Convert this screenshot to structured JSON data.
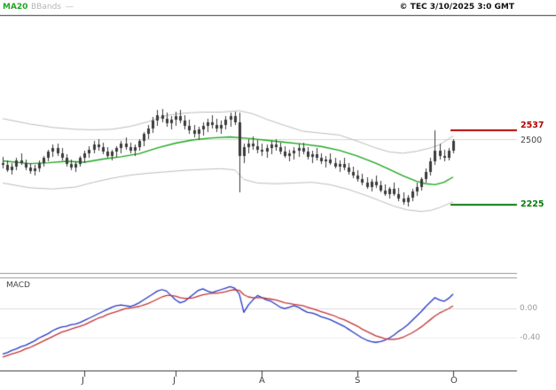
{
  "header": {
    "legend_ma20": "MA20",
    "legend_bbands": "BBands",
    "legend_dash": "—",
    "copyright": "© TEC 3/10/2025 3:0 GMT"
  },
  "price_panel": {
    "resistance": {
      "label": "2537",
      "value": 2537,
      "color": "#b30000"
    },
    "gridline": {
      "label": "2500",
      "value": 2500,
      "color": "#444444"
    },
    "support": {
      "label": "2225",
      "value": 2225,
      "color": "#0a7a0a"
    }
  },
  "macd_panel": {
    "label": "MACD",
    "axis": [
      {
        "label": "0.00",
        "value": 0
      },
      {
        "label": "-0.40",
        "value": -0.4
      }
    ]
  },
  "x_axis": {
    "labels": [
      {
        "label": "J",
        "index": 18
      },
      {
        "label": "J",
        "index": 38
      },
      {
        "label": "A",
        "index": 57
      },
      {
        "label": "S",
        "index": 78
      },
      {
        "label": "O",
        "index": 99
      }
    ]
  },
  "chart_data": {
    "type": "candlestick",
    "title": "",
    "xlabel": "",
    "ylabel": "",
    "x_tick_labels": [
      "J",
      "J",
      "A",
      "S",
      "O"
    ],
    "price_ylim": [
      1938,
      3015
    ],
    "grid_price": 2500,
    "candle_color": "#3b3b3b",
    "levels": {
      "resistance": 2537,
      "support": 2225
    },
    "candles_ohlc": [
      [
        2400,
        2425,
        2375,
        2390
      ],
      [
        2390,
        2410,
        2360,
        2370
      ],
      [
        2370,
        2400,
        2350,
        2385
      ],
      [
        2385,
        2420,
        2370,
        2410
      ],
      [
        2410,
        2440,
        2390,
        2400
      ],
      [
        2400,
        2415,
        2370,
        2380
      ],
      [
        2380,
        2400,
        2355,
        2365
      ],
      [
        2365,
        2390,
        2345,
        2375
      ],
      [
        2375,
        2410,
        2360,
        2400
      ],
      [
        2400,
        2430,
        2385,
        2420
      ],
      [
        2420,
        2455,
        2405,
        2445
      ],
      [
        2445,
        2475,
        2425,
        2460
      ],
      [
        2460,
        2480,
        2430,
        2440
      ],
      [
        2440,
        2460,
        2410,
        2420
      ],
      [
        2420,
        2435,
        2385,
        2395
      ],
      [
        2395,
        2415,
        2370,
        2380
      ],
      [
        2380,
        2405,
        2360,
        2395
      ],
      [
        2395,
        2430,
        2385,
        2420
      ],
      [
        2420,
        2450,
        2400,
        2440
      ],
      [
        2440,
        2470,
        2420,
        2455
      ],
      [
        2455,
        2490,
        2440,
        2475
      ],
      [
        2475,
        2500,
        2450,
        2465
      ],
      [
        2465,
        2485,
        2435,
        2445
      ],
      [
        2445,
        2465,
        2420,
        2430
      ],
      [
        2430,
        2455,
        2410,
        2445
      ],
      [
        2445,
        2470,
        2425,
        2460
      ],
      [
        2460,
        2490,
        2440,
        2480
      ],
      [
        2480,
        2505,
        2455,
        2465
      ],
      [
        2465,
        2485,
        2440,
        2450
      ],
      [
        2450,
        2475,
        2430,
        2465
      ],
      [
        2465,
        2500,
        2450,
        2490
      ],
      [
        2490,
        2530,
        2470,
        2520
      ],
      [
        2520,
        2560,
        2500,
        2545
      ],
      [
        2545,
        2590,
        2525,
        2575
      ],
      [
        2575,
        2620,
        2555,
        2600
      ],
      [
        2600,
        2625,
        2570,
        2585
      ],
      [
        2585,
        2610,
        2550,
        2565
      ],
      [
        2565,
        2595,
        2540,
        2580
      ],
      [
        2580,
        2615,
        2555,
        2595
      ],
      [
        2595,
        2620,
        2565,
        2575
      ],
      [
        2575,
        2600,
        2540,
        2555
      ],
      [
        2555,
        2580,
        2520,
        2535
      ],
      [
        2535,
        2560,
        2505,
        2520
      ],
      [
        2520,
        2550,
        2495,
        2540
      ],
      [
        2540,
        2570,
        2515,
        2555
      ],
      [
        2555,
        2585,
        2530,
        2570
      ],
      [
        2570,
        2600,
        2545,
        2560
      ],
      [
        2560,
        2585,
        2530,
        2545
      ],
      [
        2545,
        2575,
        2520,
        2560
      ],
      [
        2560,
        2595,
        2540,
        2580
      ],
      [
        2580,
        2610,
        2550,
        2595
      ],
      [
        2595,
        2615,
        2560,
        2570
      ],
      [
        2570,
        2612,
        2277,
        2430
      ],
      [
        2430,
        2480,
        2400,
        2465
      ],
      [
        2465,
        2500,
        2440,
        2480
      ],
      [
        2480,
        2510,
        2455,
        2470
      ],
      [
        2470,
        2495,
        2440,
        2455
      ],
      [
        2455,
        2480,
        2430,
        2445
      ],
      [
        2445,
        2475,
        2420,
        2460
      ],
      [
        2460,
        2490,
        2435,
        2475
      ],
      [
        2475,
        2500,
        2450,
        2465
      ],
      [
        2465,
        2485,
        2435,
        2445
      ],
      [
        2445,
        2470,
        2420,
        2430
      ],
      [
        2430,
        2455,
        2405,
        2440
      ],
      [
        2440,
        2465,
        2415,
        2450
      ],
      [
        2450,
        2480,
        2425,
        2460
      ],
      [
        2460,
        2485,
        2435,
        2445
      ],
      [
        2445,
        2465,
        2415,
        2425
      ],
      [
        2425,
        2450,
        2400,
        2435
      ],
      [
        2435,
        2460,
        2410,
        2420
      ],
      [
        2420,
        2440,
        2395,
        2405
      ],
      [
        2405,
        2430,
        2380,
        2415
      ],
      [
        2415,
        2440,
        2390,
        2400
      ],
      [
        2400,
        2420,
        2375,
        2385
      ],
      [
        2385,
        2410,
        2360,
        2395
      ],
      [
        2395,
        2420,
        2370,
        2380
      ],
      [
        2380,
        2400,
        2350,
        2360
      ],
      [
        2360,
        2385,
        2335,
        2345
      ],
      [
        2345,
        2370,
        2320,
        2330
      ],
      [
        2330,
        2355,
        2305,
        2315
      ],
      [
        2315,
        2340,
        2290,
        2300
      ],
      [
        2300,
        2330,
        2280,
        2320
      ],
      [
        2320,
        2345,
        2295,
        2305
      ],
      [
        2305,
        2325,
        2275,
        2285
      ],
      [
        2285,
        2310,
        2260,
        2270
      ],
      [
        2270,
        2300,
        2250,
        2290
      ],
      [
        2290,
        2315,
        2260,
        2270
      ],
      [
        2270,
        2295,
        2240,
        2250
      ],
      [
        2250,
        2275,
        2225,
        2235
      ],
      [
        2235,
        2265,
        2218,
        2255
      ],
      [
        2255,
        2290,
        2240,
        2280
      ],
      [
        2280,
        2315,
        2260,
        2300
      ],
      [
        2300,
        2340,
        2285,
        2330
      ],
      [
        2330,
        2375,
        2315,
        2360
      ],
      [
        2360,
        2420,
        2345,
        2405
      ],
      [
        2405,
        2537,
        2390,
        2450
      ],
      [
        2450,
        2480,
        2415,
        2430
      ],
      [
        2430,
        2455,
        2405,
        2420
      ],
      [
        2420,
        2460,
        2410,
        2450
      ],
      [
        2450,
        2500,
        2440,
        2490
      ]
    ],
    "overlays": {
      "ma20": {
        "name": "MA20",
        "color": "#1fa51f",
        "points": [
          [
            0,
            2408
          ],
          [
            6,
            2396
          ],
          [
            10,
            2400
          ],
          [
            14,
            2406
          ],
          [
            18,
            2402
          ],
          [
            22,
            2415
          ],
          [
            26,
            2425
          ],
          [
            30,
            2438
          ],
          [
            34,
            2462
          ],
          [
            38,
            2482
          ],
          [
            42,
            2496
          ],
          [
            46,
            2504
          ],
          [
            50,
            2508
          ],
          [
            54,
            2502
          ],
          [
            58,
            2494
          ],
          [
            62,
            2486
          ],
          [
            66,
            2478
          ],
          [
            70,
            2468
          ],
          [
            74,
            2452
          ],
          [
            78,
            2428
          ],
          [
            82,
            2398
          ],
          [
            85,
            2372
          ],
          [
            88,
            2345
          ],
          [
            91,
            2322
          ],
          [
            93,
            2312
          ],
          [
            95,
            2308
          ],
          [
            97,
            2318
          ],
          [
            99,
            2340
          ]
        ]
      },
      "bb_upper": {
        "name": "Bollinger upper",
        "color": "#bcbcbc",
        "points": [
          [
            0,
            2585
          ],
          [
            6,
            2562
          ],
          [
            11,
            2548
          ],
          [
            16,
            2540
          ],
          [
            20,
            2538
          ],
          [
            24,
            2540
          ],
          [
            28,
            2552
          ],
          [
            32,
            2572
          ],
          [
            36,
            2598
          ],
          [
            40,
            2608
          ],
          [
            44,
            2612
          ],
          [
            48,
            2612
          ],
          [
            52,
            2618
          ],
          [
            55,
            2605
          ],
          [
            58,
            2582
          ],
          [
            62,
            2556
          ],
          [
            66,
            2532
          ],
          [
            70,
            2524
          ],
          [
            74,
            2516
          ],
          [
            78,
            2490
          ],
          [
            82,
            2462
          ],
          [
            85,
            2445
          ],
          [
            88,
            2440
          ],
          [
            91,
            2448
          ],
          [
            94,
            2462
          ],
          [
            96,
            2475
          ],
          [
            98,
            2500
          ],
          [
            99,
            2512
          ]
        ]
      },
      "bb_lower": {
        "name": "Bollinger lower",
        "color": "#bcbcbc",
        "points": [
          [
            0,
            2315
          ],
          [
            6,
            2295
          ],
          [
            11,
            2290
          ],
          [
            16,
            2298
          ],
          [
            20,
            2318
          ],
          [
            24,
            2335
          ],
          [
            28,
            2348
          ],
          [
            32,
            2356
          ],
          [
            36,
            2362
          ],
          [
            40,
            2368
          ],
          [
            44,
            2372
          ],
          [
            48,
            2375
          ],
          [
            51,
            2370
          ],
          [
            53,
            2330
          ],
          [
            56,
            2315
          ],
          [
            60,
            2312
          ],
          [
            64,
            2315
          ],
          [
            68,
            2318
          ],
          [
            72,
            2308
          ],
          [
            76,
            2288
          ],
          [
            80,
            2262
          ],
          [
            83,
            2240
          ],
          [
            86,
            2218
          ],
          [
            89,
            2202
          ],
          [
            92,
            2196
          ],
          [
            94,
            2200
          ],
          [
            96,
            2212
          ],
          [
            98,
            2228
          ],
          [
            99,
            2236
          ]
        ]
      }
    },
    "macd": {
      "ylim": [
        -0.82,
        0.39
      ],
      "gridlines": [
        0,
        -0.4
      ],
      "series": [
        {
          "name": "macd",
          "color": "#2638c4",
          "values": [
            -0.62,
            -0.6,
            -0.57,
            -0.55,
            -0.52,
            -0.5,
            -0.47,
            -0.44,
            -0.4,
            -0.37,
            -0.34,
            -0.3,
            -0.27,
            -0.25,
            -0.24,
            -0.22,
            -0.21,
            -0.19,
            -0.16,
            -0.13,
            -0.1,
            -0.07,
            -0.04,
            -0.01,
            0.02,
            0.04,
            0.05,
            0.04,
            0.03,
            0.05,
            0.08,
            0.12,
            0.16,
            0.2,
            0.24,
            0.26,
            0.24,
            0.18,
            0.12,
            0.08,
            0.1,
            0.15,
            0.2,
            0.25,
            0.27,
            0.24,
            0.22,
            0.24,
            0.26,
            0.28,
            0.3,
            0.28,
            0.2,
            -0.05,
            0.05,
            0.12,
            0.18,
            0.15,
            0.12,
            0.1,
            0.06,
            0.02,
            0.0,
            0.02,
            0.04,
            0.02,
            -0.02,
            -0.05,
            -0.06,
            -0.08,
            -0.11,
            -0.13,
            -0.15,
            -0.18,
            -0.21,
            -0.24,
            -0.28,
            -0.32,
            -0.36,
            -0.4,
            -0.43,
            -0.45,
            -0.46,
            -0.45,
            -0.43,
            -0.4,
            -0.36,
            -0.31,
            -0.27,
            -0.22,
            -0.16,
            -0.1,
            -0.04,
            0.03,
            0.09,
            0.15,
            0.12,
            0.1,
            0.14,
            0.2
          ]
        },
        {
          "name": "signal",
          "color": "#c43434",
          "values": [
            -0.66,
            -0.64,
            -0.62,
            -0.6,
            -0.58,
            -0.55,
            -0.53,
            -0.5,
            -0.47,
            -0.44,
            -0.41,
            -0.38,
            -0.35,
            -0.32,
            -0.3,
            -0.28,
            -0.26,
            -0.24,
            -0.22,
            -0.19,
            -0.16,
            -0.13,
            -0.11,
            -0.08,
            -0.06,
            -0.04,
            -0.02,
            0.0,
            0.01,
            0.02,
            0.03,
            0.05,
            0.07,
            0.1,
            0.13,
            0.16,
            0.18,
            0.18,
            0.17,
            0.15,
            0.14,
            0.14,
            0.15,
            0.17,
            0.19,
            0.2,
            0.21,
            0.21,
            0.22,
            0.23,
            0.25,
            0.26,
            0.25,
            0.19,
            0.16,
            0.15,
            0.15,
            0.15,
            0.14,
            0.13,
            0.12,
            0.1,
            0.08,
            0.07,
            0.06,
            0.05,
            0.04,
            0.02,
            0.0,
            -0.02,
            -0.04,
            -0.06,
            -0.08,
            -0.1,
            -0.13,
            -0.15,
            -0.18,
            -0.21,
            -0.24,
            -0.28,
            -0.31,
            -0.34,
            -0.37,
            -0.39,
            -0.41,
            -0.42,
            -0.42,
            -0.41,
            -0.39,
            -0.36,
            -0.33,
            -0.29,
            -0.25,
            -0.2,
            -0.15,
            -0.1,
            -0.06,
            -0.03,
            0.0,
            0.04
          ]
        }
      ]
    }
  }
}
